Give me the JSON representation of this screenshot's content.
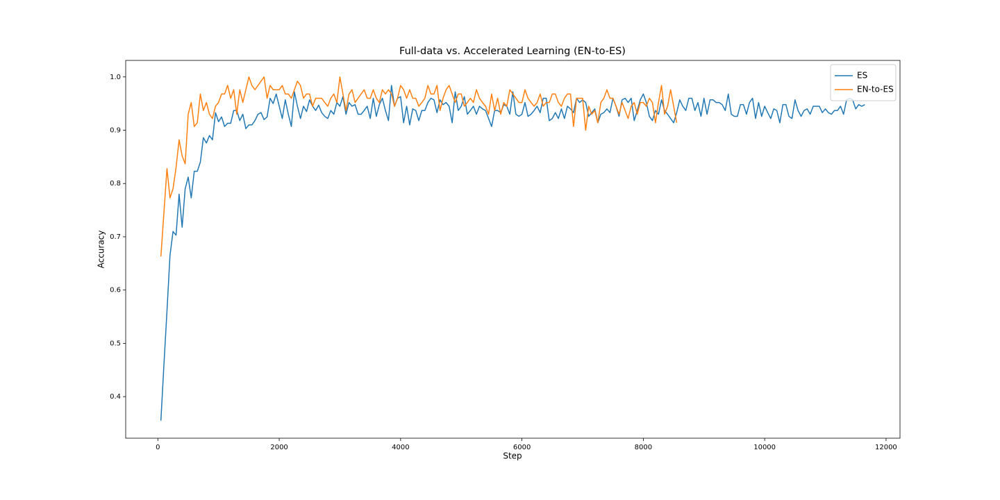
{
  "chart_data": {
    "type": "line",
    "title": "Full-data vs. Accelerated Learning (EN-to-ES)",
    "xlabel": "Step",
    "ylabel": "Accuracy",
    "xlim": [
      -530,
      12230
    ],
    "ylim": [
      0.322,
      1.031
    ],
    "xticks": [
      0,
      2000,
      4000,
      6000,
      8000,
      10000,
      12000
    ],
    "yticks": [
      0.4,
      0.5,
      0.6,
      0.7,
      0.8,
      0.9,
      {
        "value": 1,
        "label": "1.0"
      }
    ],
    "legend": "upper right",
    "series": [
      {
        "name": "ES",
        "color": "#1f77b4",
        "x": [
          50,
          100,
          150,
          200,
          250,
          300,
          350,
          400,
          450,
          500,
          550,
          600,
          650,
          700,
          750,
          800,
          850,
          900,
          950,
          1000,
          1050,
          1100,
          1150,
          1200,
          1250,
          1300,
          1350,
          1400,
          1450,
          1500,
          1550,
          1600,
          1650,
          1700,
          1750,
          1800,
          1850,
          1900,
          1950,
          2000,
          2050,
          2100,
          2150,
          2200,
          2250,
          2300,
          2350,
          2400,
          2450,
          2500,
          2550,
          2600,
          2650,
          2700,
          2750,
          2800,
          2850,
          2900,
          2950,
          3000,
          3050,
          3100,
          3150,
          3200,
          3250,
          3300,
          3350,
          3400,
          3450,
          3500,
          3550,
          3600,
          3650,
          3700,
          3750,
          3800,
          3850,
          3900,
          3950,
          4000,
          4050,
          4100,
          4150,
          4200,
          4250,
          4300,
          4350,
          4400,
          4450,
          4500,
          4550,
          4600,
          4650,
          4700,
          4750,
          4800,
          4850,
          4900,
          4950,
          5000,
          5050,
          5100,
          5150,
          5200,
          5250,
          5300,
          5350,
          5400,
          5450,
          5500,
          5550,
          5600,
          5650,
          5700,
          5750,
          5800,
          5850,
          5900,
          5950,
          6000,
          6050,
          6100,
          6150,
          6200,
          6250,
          6300,
          6350,
          6400,
          6450,
          6500,
          6550,
          6600,
          6650,
          6700,
          6750,
          6800,
          6850,
          6900,
          6950,
          7000,
          7050,
          7100,
          7150,
          7200,
          7250,
          7300,
          7350,
          7400,
          7450,
          7500,
          7550,
          7600,
          7650,
          7700,
          7750,
          7800,
          7850,
          7900,
          7950,
          8000,
          8050,
          8100,
          8150,
          8200,
          8250,
          8300,
          8350,
          8400,
          8450,
          8500,
          8550,
          8600,
          8650,
          8700,
          8750,
          8800,
          8850,
          8900,
          8950,
          9000,
          9050,
          9100,
          9150,
          9200,
          9250,
          9300,
          9350,
          9400,
          9450,
          9500,
          9550,
          9600,
          9650,
          9700,
          9750,
          9800,
          9850,
          9900,
          9950,
          10000,
          10050,
          10100,
          10150,
          10200,
          10250,
          10300,
          10350,
          10400,
          10450,
          10500,
          10550,
          10600,
          10650,
          10700,
          10750,
          10800,
          10850,
          10900,
          10950,
          11000,
          11050,
          11100,
          11150,
          11200,
          11250,
          11300,
          11350,
          11400,
          11450,
          11500,
          11550,
          11600,
          11650
        ],
        "values": [
          0.355,
          0.46,
          0.56,
          0.665,
          0.71,
          0.703,
          0.78,
          0.718,
          0.79,
          0.812,
          0.773,
          0.823,
          0.823,
          0.84,
          0.886,
          0.876,
          0.89,
          0.882,
          0.933,
          0.916,
          0.925,
          0.907,
          0.913,
          0.913,
          0.937,
          0.937,
          0.918,
          0.93,
          0.903,
          0.91,
          0.91,
          0.918,
          0.93,
          0.933,
          0.92,
          0.925,
          0.96,
          0.95,
          0.968,
          0.945,
          0.922,
          0.957,
          0.93,
          0.907,
          0.972,
          0.945,
          0.922,
          0.945,
          0.935,
          0.957,
          0.945,
          0.937,
          0.947,
          0.933,
          0.926,
          0.922,
          0.937,
          0.93,
          0.952,
          0.945,
          0.963,
          0.93,
          0.952,
          0.945,
          0.948,
          0.93,
          0.93,
          0.937,
          0.945,
          0.922,
          0.96,
          0.926,
          0.948,
          0.96,
          0.937,
          0.918,
          0.984,
          0.945,
          0.96,
          0.963,
          0.914,
          0.945,
          0.91,
          0.94,
          0.937,
          0.918,
          0.937,
          0.937,
          0.952,
          0.96,
          0.957,
          0.933,
          0.957,
          0.948,
          0.952,
          0.945,
          0.914,
          0.972,
          0.937,
          0.945,
          0.963,
          0.93,
          0.937,
          0.945,
          0.93,
          0.945,
          0.94,
          0.937,
          0.922,
          0.907,
          0.937,
          0.937,
          0.933,
          0.948,
          0.945,
          0.93,
          0.972,
          0.93,
          0.926,
          0.93,
          0.952,
          0.926,
          0.93,
          0.937,
          0.945,
          0.933,
          0.96,
          0.96,
          0.918,
          0.922,
          0.933,
          0.922,
          0.94,
          0.922,
          0.945,
          0.94,
          0.933,
          0.96,
          0.952,
          0.957,
          0.952,
          0.926,
          0.933,
          0.94,
          0.914,
          0.93,
          0.933,
          0.94,
          0.933,
          0.96,
          0.945,
          0.926,
          0.957,
          0.96,
          0.952,
          0.96,
          0.918,
          0.937,
          0.957,
          0.968,
          0.952,
          0.926,
          0.918,
          0.937,
          0.93,
          0.957,
          0.937,
          0.93,
          0.922,
          0.914,
          0.933,
          0.957,
          0.945,
          0.937,
          0.96,
          0.96,
          0.937,
          0.952,
          0.926,
          0.96,
          0.93,
          0.957,
          0.957,
          0.952,
          0.952,
          0.948,
          0.937,
          0.968,
          0.93,
          0.926,
          0.926,
          0.948,
          0.948,
          0.93,
          0.952,
          0.96,
          0.922,
          0.952,
          0.926,
          0.945,
          0.933,
          0.922,
          0.94,
          0.937,
          0.914,
          0.948,
          0.948,
          0.926,
          0.922,
          0.957,
          0.937,
          0.926,
          0.937,
          0.94,
          0.93,
          0.945,
          0.945,
          0.945,
          0.933,
          0.94,
          0.933,
          0.93,
          0.937,
          0.937,
          0.945,
          0.93,
          0.957,
          0.96,
          0.957,
          0.94,
          0.948,
          0.945,
          0.948
        ]
      },
      {
        "name": "EN-to-ES",
        "color": "#ff7f0e",
        "x": [
          50,
          100,
          150,
          200,
          250,
          300,
          350,
          400,
          450,
          500,
          550,
          600,
          650,
          700,
          750,
          800,
          850,
          900,
          950,
          1000,
          1050,
          1100,
          1150,
          1200,
          1250,
          1300,
          1350,
          1400,
          1450,
          1500,
          1550,
          1600,
          1650,
          1700,
          1750,
          1800,
          1850,
          1900,
          1950,
          2000,
          2050,
          2100,
          2150,
          2200,
          2250,
          2300,
          2350,
          2400,
          2450,
          2500,
          2550,
          2600,
          2650,
          2700,
          2750,
          2800,
          2850,
          2900,
          2950,
          3000,
          3050,
          3100,
          3150,
          3200,
          3250,
          3300,
          3350,
          3400,
          3450,
          3500,
          3550,
          3600,
          3650,
          3700,
          3750,
          3800,
          3850,
          3900,
          3950,
          4000,
          4050,
          4100,
          4150,
          4200,
          4250,
          4300,
          4350,
          4400,
          4450,
          4500,
          4550,
          4600,
          4650,
          4700,
          4750,
          4800,
          4850,
          4900,
          4950,
          5000,
          5050,
          5100,
          5150,
          5200,
          5250,
          5300,
          5350,
          5400,
          5450,
          5500,
          5550,
          5600,
          5650,
          5700,
          5750,
          5800,
          5850,
          5900,
          5950,
          6000,
          6050,
          6100,
          6150,
          6200,
          6250,
          6300,
          6350,
          6400,
          6450,
          6500,
          6550,
          6600,
          6650,
          6700,
          6750,
          6800,
          6850,
          6900,
          6950,
          7000,
          7050,
          7100,
          7150,
          7200,
          7250,
          7300,
          7350,
          7400,
          7450,
          7500,
          7550,
          7600,
          7650,
          7700,
          7750,
          7800,
          7850,
          7900,
          7950,
          8000,
          8050,
          8100,
          8150,
          8200,
          8250,
          8300,
          8350,
          8400,
          8450,
          8500,
          8550
        ],
        "values": [
          0.663,
          0.745,
          0.828,
          0.773,
          0.79,
          0.83,
          0.882,
          0.852,
          0.837,
          0.93,
          0.952,
          0.907,
          0.914,
          0.968,
          0.937,
          0.952,
          0.93,
          0.922,
          0.945,
          0.952,
          0.968,
          0.968,
          0.984,
          0.96,
          0.976,
          0.93,
          0.976,
          0.952,
          0.976,
          1.0,
          0.984,
          0.976,
          0.984,
          0.992,
          1.0,
          0.96,
          0.984,
          0.976,
          0.976,
          0.976,
          0.984,
          0.968,
          0.968,
          0.96,
          0.976,
          0.992,
          0.984,
          0.96,
          0.968,
          0.968,
          0.945,
          0.96,
          0.96,
          0.96,
          0.952,
          0.945,
          0.96,
          0.968,
          0.952,
          1.0,
          0.968,
          0.937,
          0.968,
          0.976,
          0.952,
          0.96,
          0.968,
          0.976,
          0.96,
          0.96,
          0.976,
          0.96,
          0.952,
          0.976,
          0.968,
          0.976,
          0.968,
          0.945,
          0.96,
          0.984,
          0.976,
          0.96,
          0.976,
          0.96,
          0.96,
          0.945,
          0.952,
          0.96,
          0.984,
          0.968,
          0.968,
          0.984,
          0.937,
          0.96,
          0.976,
          0.984,
          0.968,
          0.952,
          0.968,
          0.968,
          0.945,
          0.952,
          0.96,
          0.952,
          0.976,
          0.96,
          0.952,
          0.945,
          0.93,
          0.968,
          0.937,
          0.96,
          0.93,
          0.952,
          0.945,
          0.976,
          0.968,
          0.96,
          0.952,
          0.952,
          0.976,
          0.96,
          0.952,
          0.945,
          0.952,
          0.968,
          0.945,
          0.952,
          0.952,
          0.968,
          0.968,
          0.952,
          0.945,
          0.96,
          0.968,
          0.968,
          0.907,
          0.96,
          0.96,
          0.96,
          0.9,
          0.945,
          0.93,
          0.937,
          0.914,
          0.952,
          0.96,
          0.976,
          0.96,
          0.96,
          0.945,
          0.93,
          0.952,
          0.937,
          0.922,
          0.945,
          0.952,
          0.93,
          0.952,
          0.952,
          0.945,
          0.96,
          0.952,
          0.914,
          0.952,
          0.984,
          0.93,
          0.945,
          0.976,
          0.945,
          0.914
        ]
      }
    ]
  }
}
